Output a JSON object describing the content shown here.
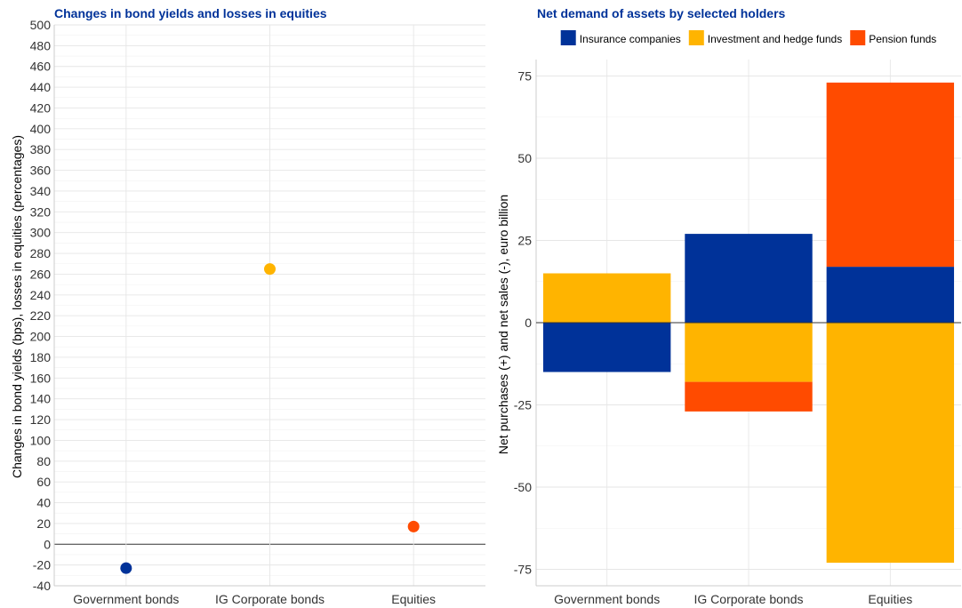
{
  "chart_data": [
    {
      "type": "scatter",
      "title": "Changes in bond yields and losses in equities",
      "ylabel": "Changes in bond yields (bps), losses in equities (percentages)",
      "xlabel": "",
      "categories": [
        "Government bonds",
        "IG Corporate bonds",
        "Equities"
      ],
      "values": [
        -23,
        265,
        17
      ],
      "point_colors": [
        "#003299",
        "#FFB400",
        "#FF4B00"
      ],
      "ylim": [
        -40,
        500
      ],
      "yticks": [
        -40,
        -20,
        0,
        20,
        40,
        60,
        80,
        100,
        120,
        140,
        160,
        180,
        200,
        220,
        240,
        260,
        280,
        300,
        320,
        340,
        360,
        380,
        400,
        420,
        440,
        460,
        480,
        500
      ],
      "grid": true
    },
    {
      "type": "bar",
      "stacked": true,
      "title": "Net demand of assets by selected holders",
      "ylabel": "Net purchases (+) and net sales (-), euro billion",
      "xlabel": "",
      "categories": [
        "Government bonds",
        "IG Corporate bonds",
        "Equities"
      ],
      "series": [
        {
          "name": "Insurance companies",
          "color": "#003299",
          "values": [
            -15,
            27,
            17
          ]
        },
        {
          "name": "Investment and hedge funds",
          "color": "#FFB400",
          "values": [
            15,
            -18,
            -73
          ]
        },
        {
          "name": "Pension funds",
          "color": "#FF4B00",
          "values": [
            0,
            -9,
            56
          ]
        }
      ],
      "ylim": [
        -80,
        80
      ],
      "yticks": [
        -75,
        -50,
        -25,
        0,
        25,
        50,
        75
      ],
      "legend_position": "top",
      "grid": true
    }
  ]
}
